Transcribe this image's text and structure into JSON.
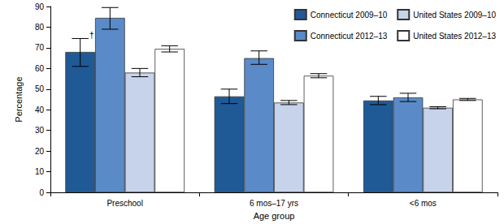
{
  "chart_data": {
    "type": "bar",
    "categories": [
      "Preschool",
      "6 mos–17 yrs",
      "<6 mos"
    ],
    "x_label": "Age group",
    "y_label": "Percentage",
    "ylim": [
      0,
      90
    ],
    "yticks": [
      0,
      10,
      20,
      30,
      40,
      50,
      60,
      70,
      80,
      90
    ],
    "grid": false,
    "legend": "top-right",
    "series": [
      {
        "name": "Connecticut 2009–10",
        "color": "#1f5a96",
        "values": [
          68,
          46.5,
          44.5
        ],
        "lower": [
          61,
          43,
          42.5
        ],
        "upper": [
          74.5,
          50,
          46.5
        ]
      },
      {
        "name": "Connecticut 2012–13",
        "color": "#5a8bc8",
        "values": [
          84.5,
          65,
          46
        ],
        "lower": [
          79,
          62,
          44
        ],
        "upper": [
          89.5,
          68.5,
          48
        ]
      },
      {
        "name": "United States 2009–10",
        "color": "#c7d3ea",
        "values": [
          58,
          43.5,
          41
        ],
        "lower": [
          56,
          42.5,
          40.5
        ],
        "upper": [
          60,
          44.5,
          41.5
        ]
      },
      {
        "name": "United States 2012–13",
        "color": "#ffffff",
        "values": [
          69.5,
          56.5,
          45
        ],
        "lower": [
          68,
          55.5,
          44.5
        ],
        "upper": [
          71,
          57.5,
          45.5
        ]
      }
    ],
    "annotations": [
      {
        "text": "†",
        "series": "Connecticut 2009–10",
        "category": "Preschool"
      }
    ]
  }
}
